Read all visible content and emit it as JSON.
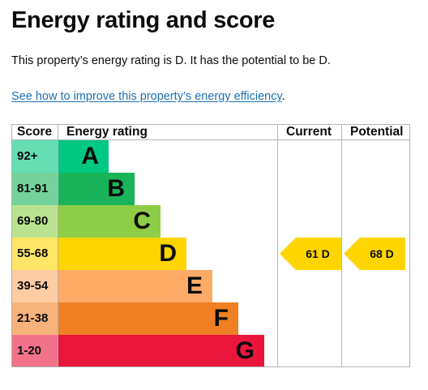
{
  "heading": "Energy rating and score",
  "summary": "This property’s energy rating is D. It has the potential to be D.",
  "improve_link": "See how to improve this property’s energy efficiency",
  "improve_suffix": ".",
  "chart_data": {
    "type": "table",
    "columns": {
      "score": "Score",
      "rating": "Energy rating",
      "current": "Current",
      "potential": "Potential"
    },
    "bands": [
      {
        "score": "92+",
        "letter": "A",
        "color": "#00c781"
      },
      {
        "score": "81-91",
        "letter": "B",
        "color": "#19b459"
      },
      {
        "score": "69-80",
        "letter": "C",
        "color": "#8dce46"
      },
      {
        "score": "55-68",
        "letter": "D",
        "color": "#ffd500"
      },
      {
        "score": "39-54",
        "letter": "E",
        "color": "#fcaa65"
      },
      {
        "score": "21-38",
        "letter": "F",
        "color": "#ef8023"
      },
      {
        "score": "1-20",
        "letter": "G",
        "color": "#e9153b"
      }
    ],
    "current": {
      "label": "61 D",
      "score": 61,
      "band": "D"
    },
    "potential": {
      "label": "68 D",
      "score": 68,
      "band": "D"
    }
  },
  "colors": {
    "text": "#0b0c0c",
    "link": "#1d70b8",
    "grid": "#b1b4b6",
    "marker": "#ffd500"
  }
}
